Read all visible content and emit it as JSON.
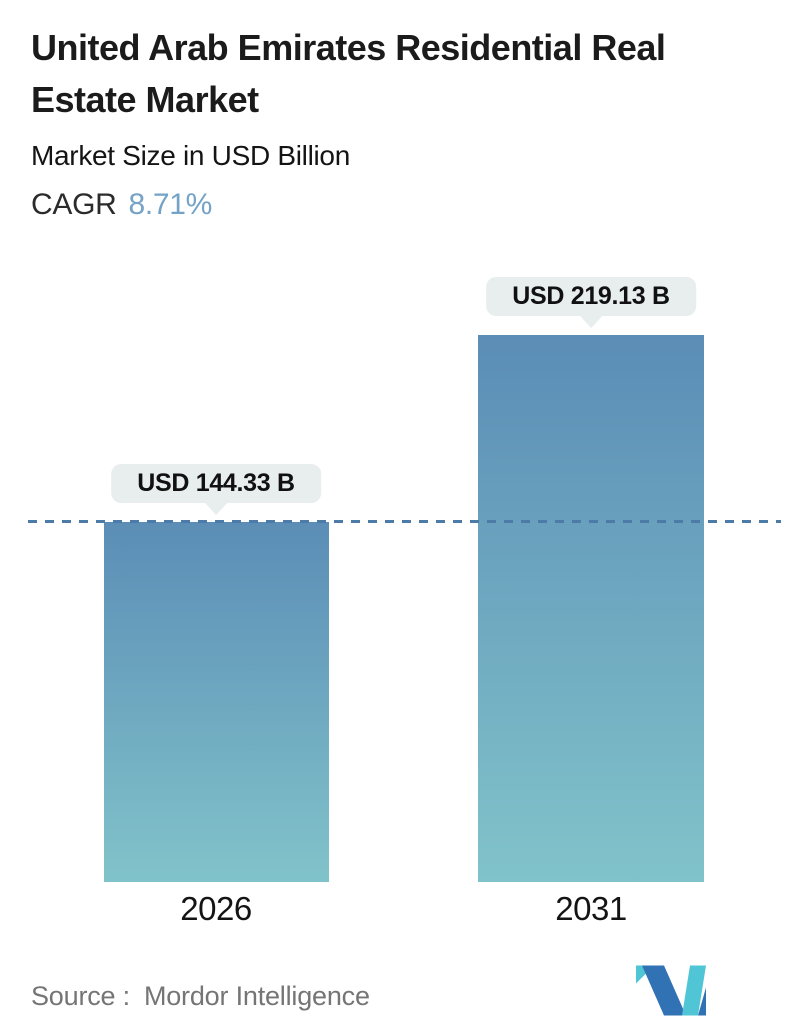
{
  "header": {
    "title": "United Arab Emirates Residential Real\nEstate Market",
    "subtitle": "Market Size in USD Billion",
    "cagr_label": "CAGR",
    "cagr_value": "8.71%"
  },
  "chart_data": {
    "type": "bar",
    "categories": [
      "2026",
      "2031"
    ],
    "values": [
      144.33,
      219.13
    ],
    "value_labels": [
      "USD 144.33 B",
      "USD 219.13 B"
    ],
    "unit": "USD Billion",
    "title": "United Arab Emirates Residential Real Estate Market",
    "ylabel": "Market Size in USD Billion",
    "ylim": [
      0,
      219.13
    ],
    "grid": false,
    "legend": false,
    "reference_line": {
      "value": 144.33,
      "style": "dashed"
    }
  },
  "footer": {
    "source_label": "Source :",
    "source_value": "Mordor Intelligence",
    "logo_name": "mordor-intelligence-logo"
  },
  "colors": {
    "cagr_accent": "#74a3c7",
    "bar_top": "#5b8db6",
    "bar_bottom": "#81c3ca",
    "dashed_line": "#4c7ba7",
    "callout_bg": "#e8edee",
    "source_text": "#757575",
    "logo_teal": "#4fc5d6",
    "logo_blue": "#3072b4"
  }
}
